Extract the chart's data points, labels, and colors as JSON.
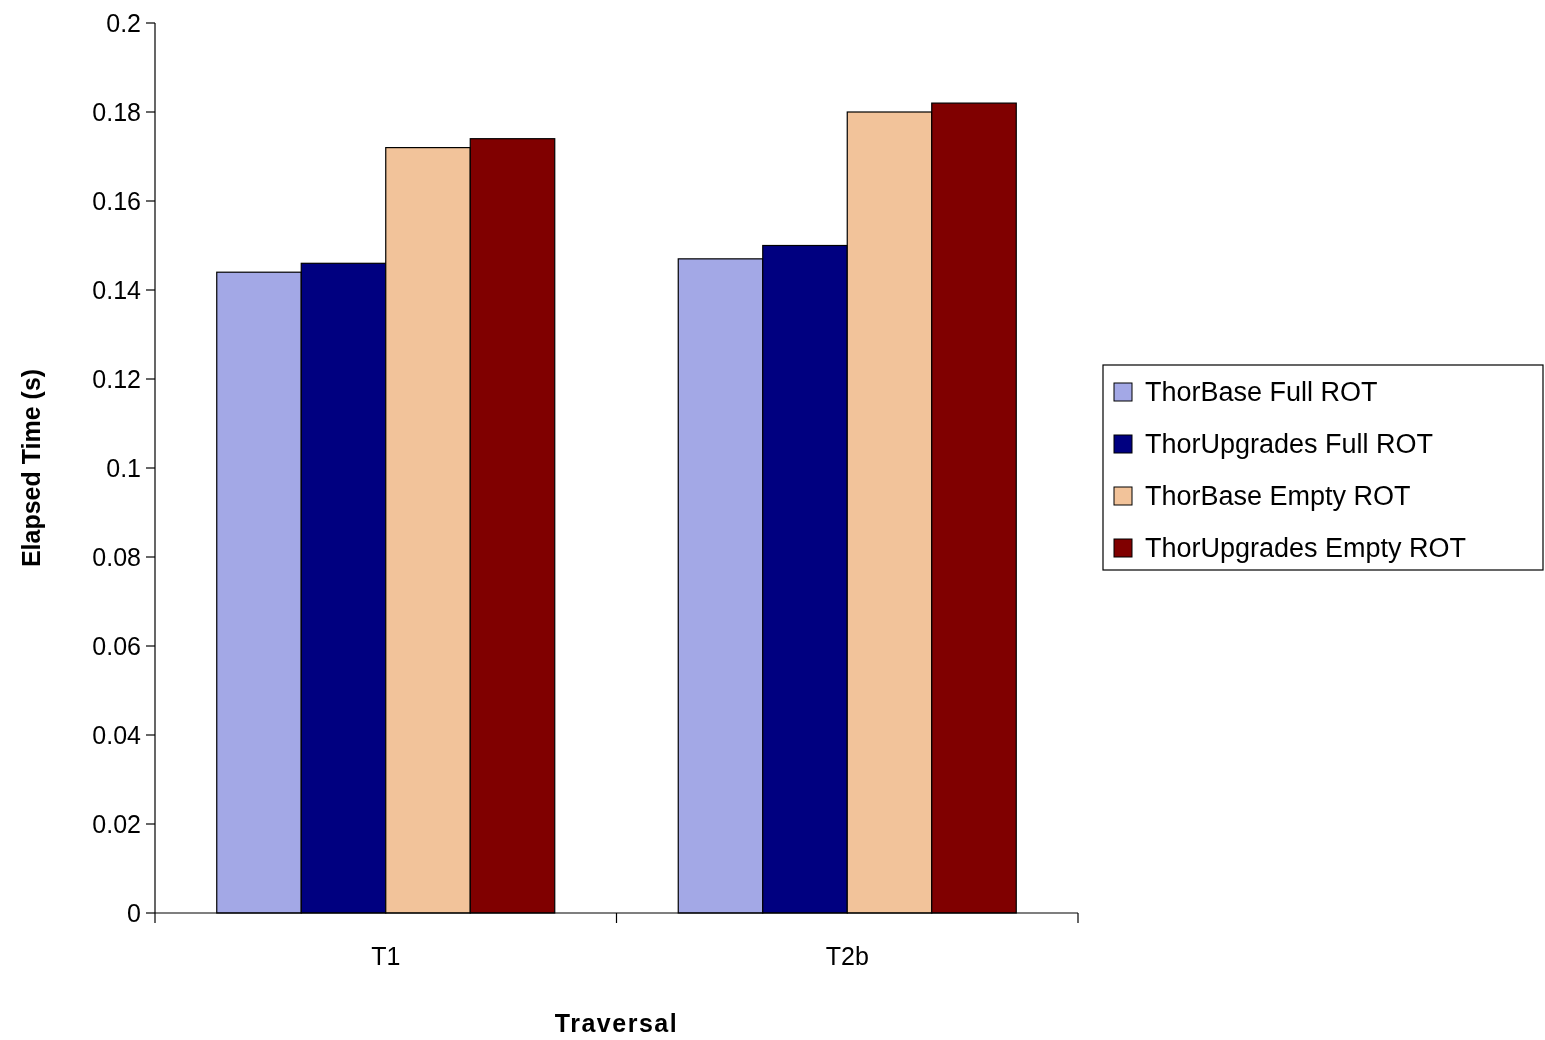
{
  "chart_data": {
    "type": "bar",
    "xlabel": "Traversal",
    "ylabel": "Elapsed Time (s)",
    "categories": [
      "T1",
      "T2b"
    ],
    "series": [
      {
        "name": "ThorBase Full ROT",
        "color": "#a3a8e6",
        "values": [
          0.144,
          0.147
        ]
      },
      {
        "name": "ThorUpgrades Full ROT",
        "color": "#000080",
        "values": [
          0.146,
          0.15
        ]
      },
      {
        "name": "ThorBase Empty ROT",
        "color": "#f2c39a",
        "values": [
          0.172,
          0.18
        ]
      },
      {
        "name": "ThorUpgrades Empty ROT",
        "color": "#800000",
        "values": [
          0.174,
          0.182
        ]
      }
    ],
    "ylim": [
      0,
      0.2
    ],
    "yticks": [
      0,
      0.02,
      0.04,
      0.06,
      0.08,
      0.1,
      0.12,
      0.14,
      0.16,
      0.18,
      0.2
    ],
    "grid": false,
    "legend": "right"
  }
}
